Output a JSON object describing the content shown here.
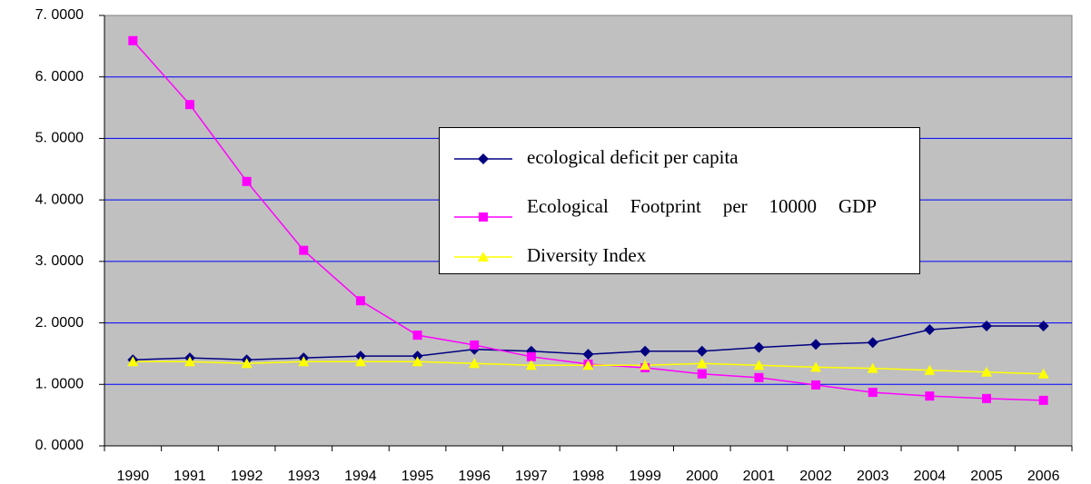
{
  "chart_data": {
    "type": "line",
    "categories": [
      "1990",
      "1991",
      "1992",
      "1993",
      "1994",
      "1995",
      "1996",
      "1997",
      "1998",
      "1999",
      "2000",
      "2001",
      "2002",
      "2003",
      "2004",
      "2005",
      "2006"
    ],
    "series": [
      {
        "name": "ecological deficit per capita",
        "color": "#000080",
        "marker": "diamond",
        "values": [
          1.4,
          1.43,
          1.4,
          1.43,
          1.46,
          1.46,
          1.57,
          1.54,
          1.49,
          1.54,
          1.54,
          1.6,
          1.65,
          1.68,
          1.89,
          1.95,
          1.95
        ]
      },
      {
        "name": "Ecological Footprint per 10000 GDP",
        "color": "#ff00ff",
        "marker": "square",
        "values": [
          6.59,
          5.55,
          4.3,
          3.18,
          2.36,
          1.8,
          1.64,
          1.45,
          1.33,
          1.27,
          1.17,
          1.11,
          0.99,
          0.87,
          0.81,
          0.77,
          0.74
        ]
      },
      {
        "name": "Diversity Index",
        "color": "#ffff00",
        "marker": "triangle",
        "values": [
          1.37,
          1.37,
          1.34,
          1.37,
          1.37,
          1.37,
          1.34,
          1.31,
          1.31,
          1.31,
          1.34,
          1.31,
          1.28,
          1.26,
          1.23,
          1.2,
          1.17
        ]
      }
    ],
    "ylim": [
      0,
      7
    ],
    "yticks": [
      {
        "value": 0,
        "label": "0. 0000"
      },
      {
        "value": 1,
        "label": "1. 0000"
      },
      {
        "value": 2,
        "label": "2. 0000"
      },
      {
        "value": 3,
        "label": "3. 0000"
      },
      {
        "value": 4,
        "label": "4. 0000"
      },
      {
        "value": 5,
        "label": "5. 0000"
      },
      {
        "value": 6,
        "label": "6. 0000"
      },
      {
        "value": 7,
        "label": "7. 0000"
      }
    ],
    "grid": true
  }
}
